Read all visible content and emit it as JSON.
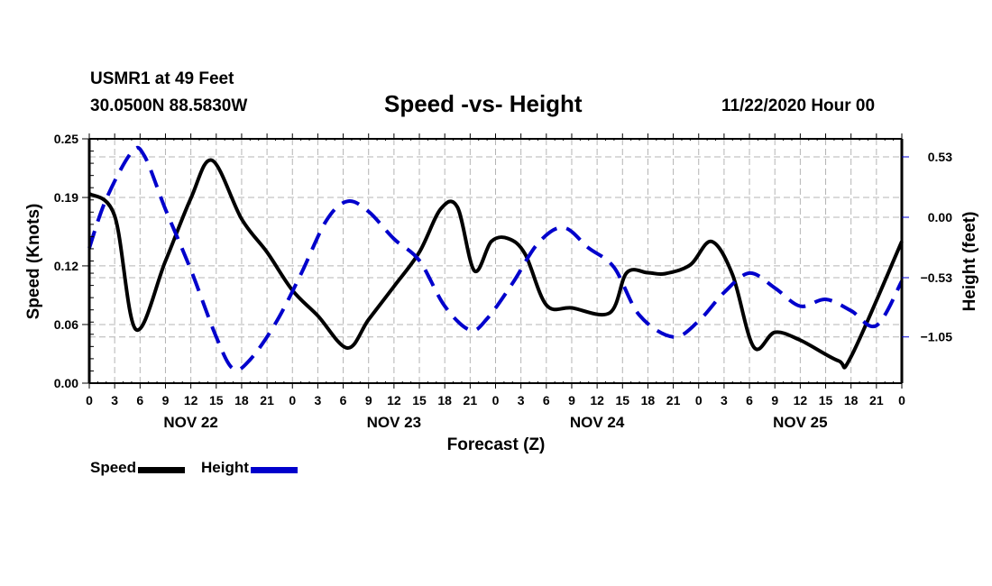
{
  "header": {
    "station": "USMR1 at 49 Feet",
    "coords": "30.0500N 88.5830W",
    "title": "Speed -vs- Height",
    "datetime": "11/22/2020 Hour 00"
  },
  "legend": {
    "items": [
      {
        "label": "Speed",
        "style": "solid",
        "color": "#000000"
      },
      {
        "label": "Height",
        "style": "dashed",
        "color": "#0000cc"
      }
    ]
  },
  "chart_data": {
    "type": "line",
    "title": "Speed -vs- Height",
    "xlabel": "Forecast (Z)",
    "ylabel": "Speed (Knots)",
    "y2label": "Height (feet)",
    "xlim": [
      0,
      96
    ],
    "ylim": [
      0.0,
      0.25
    ],
    "y2lim": [
      -1.5,
      0.69
    ],
    "grid": true,
    "legend_position": "bottom-left",
    "x_ticks": [
      0,
      3,
      6,
      9,
      12,
      15,
      18,
      21,
      24,
      27,
      30,
      33,
      36,
      39,
      42,
      45,
      48,
      51,
      54,
      57,
      60,
      63,
      66,
      69,
      72,
      75,
      78,
      81,
      84,
      87,
      90,
      93,
      96
    ],
    "x_tick_labels": [
      "0",
      "3",
      "6",
      "9",
      "12",
      "15",
      "18",
      "21",
      "0",
      "3",
      "6",
      "9",
      "12",
      "15",
      "18",
      "21",
      "0",
      "3",
      "6",
      "9",
      "12",
      "15",
      "18",
      "21",
      "0",
      "3",
      "6",
      "9",
      "12",
      "15",
      "18",
      "21",
      "0"
    ],
    "day_labels": [
      {
        "label": "NOV 22",
        "at_hour": 12
      },
      {
        "label": "NOV 23",
        "at_hour": 36
      },
      {
        "label": "NOV 24",
        "at_hour": 60
      },
      {
        "label": "NOV 25",
        "at_hour": 84
      }
    ],
    "y_ticks": [
      0.0,
      0.06,
      0.12,
      0.19,
      0.25
    ],
    "y_tick_labels": [
      "0.00",
      "0.06",
      "0.12",
      "0.19",
      "0.25"
    ],
    "y2_ticks": [
      0.53,
      0.0,
      -0.53,
      -1.05
    ],
    "y2_tick_labels": [
      "0.53",
      "0.00",
      "-0.53",
      "-1.05"
    ],
    "series": [
      {
        "name": "Speed",
        "axis": "left",
        "color": "#000000",
        "style": "solid",
        "x": [
          0,
          3,
          5.5,
          9,
          12,
          14.5,
          18,
          21,
          24,
          27,
          30.5,
          33,
          36,
          39,
          41.5,
          43.5,
          45.5,
          47.5,
          49.5,
          51.5,
          54,
          57,
          61.5,
          63.5,
          66,
          68,
          71,
          73.5,
          76,
          78.5,
          81,
          84,
          88.5,
          90,
          96
        ],
        "values": [
          0.194,
          0.171,
          0.055,
          0.125,
          0.189,
          0.228,
          0.168,
          0.134,
          0.095,
          0.069,
          0.036,
          0.065,
          0.099,
          0.134,
          0.178,
          0.18,
          0.115,
          0.145,
          0.148,
          0.132,
          0.08,
          0.077,
          0.072,
          0.113,
          0.113,
          0.112,
          0.121,
          0.145,
          0.111,
          0.037,
          0.052,
          0.044,
          0.023,
          0.027,
          0.145
        ]
      },
      {
        "name": "Height",
        "axis": "right",
        "color": "#0000cc",
        "style": "dashed",
        "x": [
          0,
          2,
          5,
          6.5,
          9,
          12,
          15,
          17,
          19,
          22,
          25,
          28,
          30.5,
          33,
          36,
          39,
          42,
          45,
          47,
          50,
          53,
          56,
          59,
          62,
          65,
          69,
          72,
          75,
          78,
          81,
          84,
          87,
          90,
          93,
          96
        ],
        "values": [
          -0.27,
          0.16,
          0.57,
          0.54,
          0.07,
          -0.46,
          -1.05,
          -1.33,
          -1.25,
          -0.93,
          -0.5,
          -0.03,
          0.14,
          0.05,
          -0.19,
          -0.38,
          -0.78,
          -0.99,
          -0.89,
          -0.58,
          -0.23,
          -0.09,
          -0.27,
          -0.44,
          -0.86,
          -1.05,
          -0.91,
          -0.66,
          -0.49,
          -0.62,
          -0.78,
          -0.72,
          -0.82,
          -0.95,
          -0.56
        ]
      }
    ]
  }
}
